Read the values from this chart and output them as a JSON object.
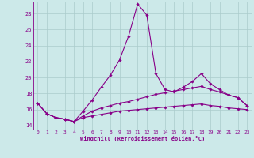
{
  "xlabel": "Windchill (Refroidissement éolien,°C)",
  "background_color": "#cce9e9",
  "grid_color": "#aacccc",
  "line_color": "#880088",
  "xlim": [
    -0.5,
    23.5
  ],
  "ylim": [
    13.5,
    29.5
  ],
  "yticks": [
    14,
    16,
    18,
    20,
    22,
    24,
    26,
    28
  ],
  "xticks": [
    0,
    1,
    2,
    3,
    4,
    5,
    6,
    7,
    8,
    9,
    10,
    11,
    12,
    13,
    14,
    15,
    16,
    17,
    18,
    19,
    20,
    21,
    22,
    23
  ],
  "series1_x": [
    0,
    1,
    2,
    3,
    4,
    5,
    6,
    7,
    8,
    9,
    10,
    11,
    12,
    13,
    14,
    15,
    16,
    17,
    18,
    19,
    20,
    21,
    22,
    23
  ],
  "series1_y": [
    16.8,
    15.5,
    15.0,
    14.8,
    14.5,
    15.8,
    17.2,
    18.8,
    20.3,
    22.2,
    25.2,
    29.2,
    27.8,
    20.5,
    18.5,
    18.2,
    18.8,
    19.5,
    20.5,
    19.2,
    18.5,
    17.8,
    17.5,
    16.5
  ],
  "series2_x": [
    0,
    1,
    2,
    3,
    4,
    5,
    6,
    7,
    8,
    9,
    10,
    11,
    12,
    13,
    14,
    15,
    16,
    17,
    18,
    19,
    20,
    21,
    22,
    23
  ],
  "series2_y": [
    16.8,
    15.5,
    15.0,
    14.8,
    14.5,
    15.2,
    15.8,
    16.2,
    16.5,
    16.8,
    17.0,
    17.3,
    17.6,
    17.9,
    18.1,
    18.3,
    18.5,
    18.7,
    18.9,
    18.5,
    18.2,
    17.8,
    17.5,
    16.5
  ],
  "series3_x": [
    0,
    1,
    2,
    3,
    4,
    5,
    6,
    7,
    8,
    9,
    10,
    11,
    12,
    13,
    14,
    15,
    16,
    17,
    18,
    19,
    20,
    21,
    22,
    23
  ],
  "series3_y": [
    16.8,
    15.5,
    15.0,
    14.8,
    14.5,
    15.0,
    15.2,
    15.4,
    15.6,
    15.8,
    15.9,
    16.0,
    16.1,
    16.2,
    16.3,
    16.4,
    16.5,
    16.6,
    16.7,
    16.5,
    16.4,
    16.2,
    16.1,
    16.0
  ],
  "marker": "D",
  "markersize": 1.8,
  "linewidth": 0.8,
  "tick_fontsize": 4.5,
  "xlabel_fontsize": 5.0
}
